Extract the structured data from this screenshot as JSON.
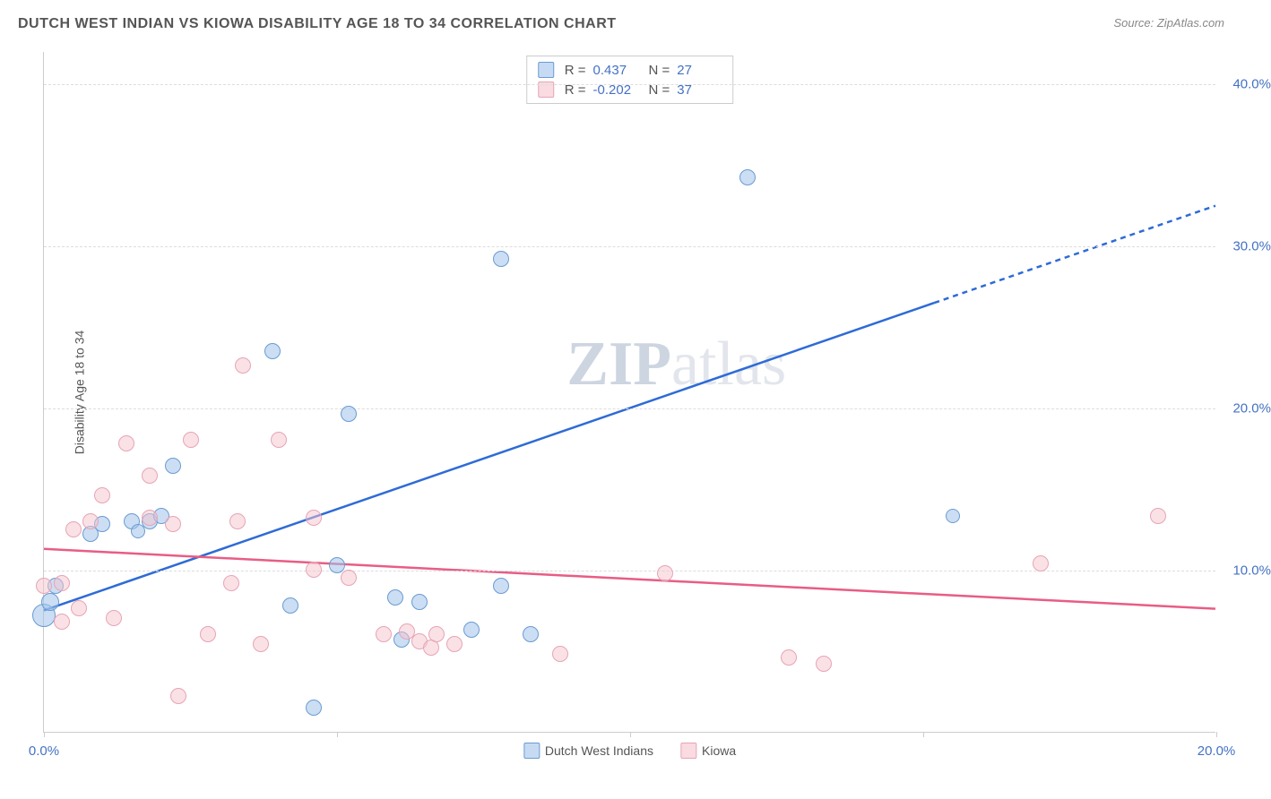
{
  "title": "DUTCH WEST INDIAN VS KIOWA DISABILITY AGE 18 TO 34 CORRELATION CHART",
  "source": "Source: ZipAtlas.com",
  "y_axis_label": "Disability Age 18 to 34",
  "watermark_bold": "ZIP",
  "watermark_rest": "atlas",
  "chart": {
    "type": "scatter",
    "background_color": "#ffffff",
    "grid_color": "#dddddd",
    "axis_color": "#cccccc",
    "xlim": [
      0,
      20
    ],
    "ylim": [
      0,
      42
    ],
    "x_ticks": [
      0,
      5,
      10,
      15,
      20
    ],
    "x_tick_labels": [
      "0.0%",
      "",
      "",
      "",
      "20.0%"
    ],
    "y_ticks": [
      10,
      20,
      30,
      40
    ],
    "y_tick_labels": [
      "10.0%",
      "20.0%",
      "30.0%",
      "40.0%"
    ],
    "tick_label_color": "#4472c4",
    "tick_label_fontsize": 15,
    "series": [
      {
        "name": "Dutch West Indians",
        "color_fill": "rgba(160,195,235,0.55)",
        "color_stroke": "#6b9bd1",
        "trend_color": "#2e6bd6",
        "trend_width": 2.5,
        "R": "0.437",
        "N": "27",
        "marker_radius": 9,
        "trend": {
          "x1": 0,
          "y1": 7.5,
          "x2_solid": 15.2,
          "y2_solid": 26.5,
          "x2_dash": 20,
          "y2_dash": 32.5
        },
        "points": [
          {
            "x": 0.0,
            "y": 7.2,
            "r": 13
          },
          {
            "x": 0.1,
            "y": 8.0,
            "r": 10
          },
          {
            "x": 0.2,
            "y": 9.0,
            "r": 9
          },
          {
            "x": 0.8,
            "y": 12.2,
            "r": 9
          },
          {
            "x": 1.0,
            "y": 12.8,
            "r": 9
          },
          {
            "x": 1.5,
            "y": 13.0,
            "r": 9
          },
          {
            "x": 1.6,
            "y": 12.4,
            "r": 8
          },
          {
            "x": 1.8,
            "y": 13.0,
            "r": 9
          },
          {
            "x": 2.0,
            "y": 13.3,
            "r": 9
          },
          {
            "x": 2.2,
            "y": 16.4,
            "r": 9
          },
          {
            "x": 3.9,
            "y": 23.5,
            "r": 9
          },
          {
            "x": 4.2,
            "y": 7.8,
            "r": 9
          },
          {
            "x": 4.6,
            "y": 1.5,
            "r": 9
          },
          {
            "x": 5.0,
            "y": 10.3,
            "r": 9
          },
          {
            "x": 5.2,
            "y": 19.6,
            "r": 9
          },
          {
            "x": 6.0,
            "y": 8.3,
            "r": 9
          },
          {
            "x": 6.1,
            "y": 5.7,
            "r": 9
          },
          {
            "x": 6.4,
            "y": 8.0,
            "r": 9
          },
          {
            "x": 7.3,
            "y": 6.3,
            "r": 9
          },
          {
            "x": 7.8,
            "y": 29.2,
            "r": 9
          },
          {
            "x": 7.8,
            "y": 9.0,
            "r": 9
          },
          {
            "x": 8.3,
            "y": 6.0,
            "r": 9
          },
          {
            "x": 12.0,
            "y": 34.2,
            "r": 9
          },
          {
            "x": 15.5,
            "y": 13.3,
            "r": 8
          }
        ]
      },
      {
        "name": "Kiowa",
        "color_fill": "rgba(245,195,205,0.5)",
        "color_stroke": "#e6a5b5",
        "trend_color": "#e85d85",
        "trend_width": 2.5,
        "R": "-0.202",
        "N": "37",
        "marker_radius": 9,
        "trend": {
          "x1": 0,
          "y1": 11.3,
          "x2_solid": 20,
          "y2_solid": 7.6
        },
        "points": [
          {
            "x": 0.0,
            "y": 9.0,
            "r": 9
          },
          {
            "x": 0.3,
            "y": 9.2,
            "r": 9
          },
          {
            "x": 0.3,
            "y": 6.8,
            "r": 9
          },
          {
            "x": 0.5,
            "y": 12.5,
            "r": 9
          },
          {
            "x": 0.6,
            "y": 7.6,
            "r": 9
          },
          {
            "x": 0.8,
            "y": 13.0,
            "r": 9
          },
          {
            "x": 1.0,
            "y": 14.6,
            "r": 9
          },
          {
            "x": 1.2,
            "y": 7.0,
            "r": 9
          },
          {
            "x": 1.4,
            "y": 17.8,
            "r": 9
          },
          {
            "x": 1.8,
            "y": 13.2,
            "r": 9
          },
          {
            "x": 1.8,
            "y": 15.8,
            "r": 9
          },
          {
            "x": 2.2,
            "y": 12.8,
            "r": 9
          },
          {
            "x": 2.3,
            "y": 2.2,
            "r": 9
          },
          {
            "x": 2.5,
            "y": 18.0,
            "r": 9
          },
          {
            "x": 2.8,
            "y": 6.0,
            "r": 9
          },
          {
            "x": 3.2,
            "y": 9.2,
            "r": 9
          },
          {
            "x": 3.3,
            "y": 13.0,
            "r": 9
          },
          {
            "x": 3.4,
            "y": 22.6,
            "r": 9
          },
          {
            "x": 3.7,
            "y": 5.4,
            "r": 9
          },
          {
            "x": 4.0,
            "y": 18.0,
            "r": 9
          },
          {
            "x": 4.6,
            "y": 10.0,
            "r": 9
          },
          {
            "x": 4.6,
            "y": 13.2,
            "r": 9
          },
          {
            "x": 5.2,
            "y": 9.5,
            "r": 9
          },
          {
            "x": 5.8,
            "y": 6.0,
            "r": 9
          },
          {
            "x": 6.2,
            "y": 6.2,
            "r": 9
          },
          {
            "x": 6.4,
            "y": 5.6,
            "r": 9
          },
          {
            "x": 6.6,
            "y": 5.2,
            "r": 9
          },
          {
            "x": 6.7,
            "y": 6.0,
            "r": 9
          },
          {
            "x": 7.0,
            "y": 5.4,
            "r": 9
          },
          {
            "x": 8.8,
            "y": 4.8,
            "r": 9
          },
          {
            "x": 10.6,
            "y": 9.8,
            "r": 9
          },
          {
            "x": 12.7,
            "y": 4.6,
            "r": 9
          },
          {
            "x": 13.3,
            "y": 4.2,
            "r": 9
          },
          {
            "x": 17.0,
            "y": 10.4,
            "r": 9
          },
          {
            "x": 19.0,
            "y": 13.3,
            "r": 9
          }
        ]
      }
    ]
  },
  "legend_bottom": [
    {
      "label": "Dutch West Indians",
      "swatch": "blue"
    },
    {
      "label": "Kiowa",
      "swatch": "pink"
    }
  ]
}
